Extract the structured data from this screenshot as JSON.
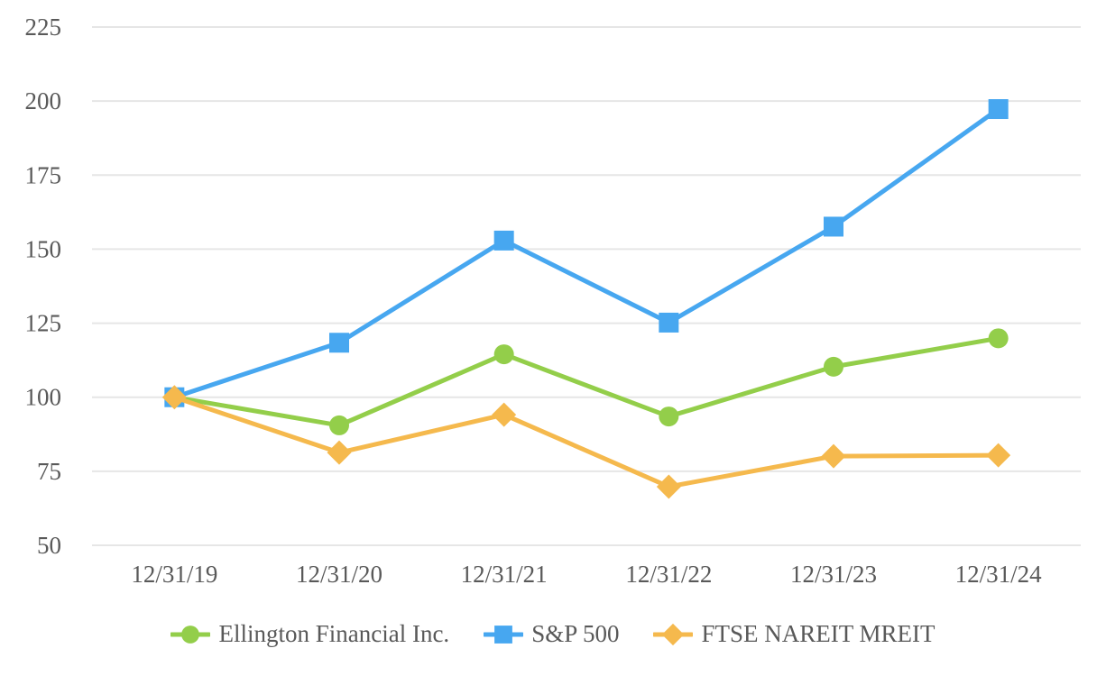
{
  "chart_data": {
    "type": "line",
    "title": "",
    "xlabel": "",
    "ylabel": "",
    "x_categories": [
      "12/31/19",
      "12/31/20",
      "12/31/21",
      "12/31/22",
      "12/31/23",
      "12/31/24"
    ],
    "y_ticks": [
      225,
      200,
      175,
      150,
      125,
      100,
      75,
      50
    ],
    "ylim": [
      50,
      225
    ],
    "grid": "horizontal-only",
    "legend_position": "bottom-center",
    "series": [
      {
        "name": "Ellington Financial Inc.",
        "marker": "circle",
        "color": "#93CE4A",
        "values": [
          100,
          90.5,
          114.5,
          93.5,
          110.3,
          119.9
        ]
      },
      {
        "name": "S&P 500",
        "marker": "square",
        "color": "#47A7F0",
        "values": [
          100,
          118.4,
          152.9,
          125.2,
          157.6,
          197.3
        ]
      },
      {
        "name": "FTSE NAREIT MREIT",
        "marker": "diamond",
        "color": "#F5B94D",
        "values": [
          100,
          81.3,
          94.1,
          69.8,
          80.1,
          80.4
        ]
      }
    ],
    "colors": {
      "gridline": "#E6E6E6",
      "axis_text": "#595959",
      "background": "#FFFFFF"
    }
  }
}
